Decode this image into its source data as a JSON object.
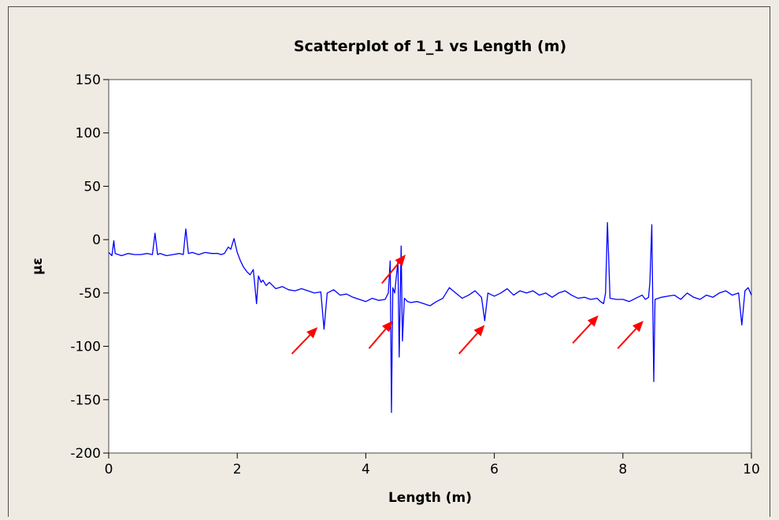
{
  "chart_data": {
    "type": "line",
    "title": "Scatterplot of 1_1 vs Length (m)",
    "xlabel": "Length (m)",
    "ylabel": "με",
    "xlim": [
      0,
      10
    ],
    "ylim": [
      -200,
      150
    ],
    "xticks": [
      0,
      2,
      4,
      6,
      8,
      10
    ],
    "yticks": [
      150,
      100,
      50,
      0,
      -50,
      -100,
      -150,
      -200
    ],
    "xtick_labels": [
      "0",
      "2",
      "4",
      "6",
      "8",
      "10"
    ],
    "ytick_labels": [
      "150",
      "100",
      "50",
      "0",
      "-50",
      "-100",
      "-150",
      "-200"
    ],
    "grid": false,
    "legend": "none",
    "colors": {
      "series": "#0000ff",
      "annotation_arrows": "#ff0000",
      "plot_background": "#ffffff",
      "page_background": "#efebe3"
    },
    "series": [
      {
        "x": [
          0,
          0.05,
          0.08,
          0.1,
          0.2,
          0.3,
          0.4,
          0.5,
          0.6,
          0.68,
          0.72,
          0.76,
          0.8,
          0.9,
          1.0,
          1.1,
          1.16,
          1.2,
          1.24,
          1.3,
          1.4,
          1.5,
          1.6,
          1.7,
          1.75,
          1.8,
          1.86,
          1.9,
          1.95,
          2.0,
          2.05,
          2.1,
          2.15,
          2.2,
          2.25,
          2.3,
          2.33,
          2.37,
          2.4,
          2.45,
          2.5,
          2.6,
          2.7,
          2.8,
          2.9,
          3.0,
          3.1,
          3.2,
          3.3,
          3.35,
          3.4,
          3.5,
          3.6,
          3.7,
          3.8,
          3.9,
          4.0,
          4.1,
          4.2,
          4.3,
          4.35,
          4.38,
          4.4,
          4.42,
          4.45,
          4.5,
          4.52,
          4.55,
          4.57,
          4.6,
          4.62,
          4.65,
          4.7,
          4.8,
          4.9,
          5.0,
          5.1,
          5.2,
          5.3,
          5.4,
          5.5,
          5.6,
          5.7,
          5.8,
          5.85,
          5.9,
          6.0,
          6.1,
          6.2,
          6.3,
          6.4,
          6.5,
          6.6,
          6.7,
          6.8,
          6.9,
          7.0,
          7.1,
          7.2,
          7.3,
          7.4,
          7.5,
          7.6,
          7.65,
          7.7,
          7.73,
          7.76,
          7.8,
          7.9,
          8.0,
          8.1,
          8.2,
          8.3,
          8.35,
          8.4,
          8.42,
          8.45,
          8.48,
          8.5,
          8.6,
          8.7,
          8.8,
          8.9,
          9.0,
          9.1,
          9.2,
          9.3,
          9.4,
          9.5,
          9.6,
          9.7,
          9.8,
          9.85,
          9.9,
          9.95,
          10.0
        ],
        "y": [
          -12,
          -15,
          -1,
          -13,
          -15,
          -13,
          -14,
          -14,
          -13,
          -14,
          6,
          -14,
          -13,
          -15,
          -14,
          -13,
          -14,
          10,
          -13,
          -12,
          -14,
          -12,
          -13,
          -13,
          -14,
          -13,
          -7,
          -9,
          1,
          -12,
          -20,
          -26,
          -30,
          -33,
          -28,
          -60,
          -34,
          -40,
          -38,
          -43,
          -40,
          -46,
          -44,
          -47,
          -48,
          -46,
          -48,
          -50,
          -49,
          -84,
          -50,
          -47,
          -52,
          -51,
          -54,
          -56,
          -58,
          -55,
          -57,
          -56,
          -50,
          -20,
          -162,
          -45,
          -50,
          -20,
          -110,
          -6,
          -95,
          -55,
          -56,
          -58,
          -59,
          -58,
          -60,
          -62,
          -58,
          -55,
          -45,
          -50,
          -55,
          -52,
          -48,
          -54,
          -76,
          -50,
          -53,
          -50,
          -46,
          -52,
          -48,
          -50,
          -48,
          -52,
          -50,
          -54,
          -50,
          -48,
          -52,
          -55,
          -54,
          -56,
          -55,
          -58,
          -60,
          -50,
          16,
          -55,
          -56,
          -56,
          -58,
          -55,
          -52,
          -56,
          -54,
          -40,
          14,
          -133,
          -56,
          -54,
          -53,
          -52,
          -56,
          -50,
          -54,
          -56,
          -52,
          -54,
          -50,
          -48,
          -52,
          -50,
          -80,
          -48,
          -45,
          -52
        ]
      }
    ],
    "annotations": [
      {
        "type": "arrow",
        "color": "red",
        "from": [
          2.85,
          -107
        ],
        "to": [
          3.25,
          -82
        ]
      },
      {
        "type": "arrow",
        "color": "red",
        "from": [
          4.05,
          -102
        ],
        "to": [
          4.42,
          -76
        ]
      },
      {
        "type": "arrow",
        "color": "red",
        "from": [
          4.25,
          -41
        ],
        "to": [
          4.62,
          -14
        ]
      },
      {
        "type": "arrow",
        "color": "red",
        "from": [
          5.45,
          -107
        ],
        "to": [
          5.85,
          -80
        ]
      },
      {
        "type": "arrow",
        "color": "red",
        "from": [
          7.22,
          -97
        ],
        "to": [
          7.62,
          -71
        ]
      },
      {
        "type": "arrow",
        "color": "red",
        "from": [
          7.92,
          -102
        ],
        "to": [
          8.32,
          -76
        ]
      }
    ]
  }
}
